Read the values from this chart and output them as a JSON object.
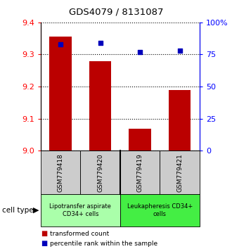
{
  "title": "GDS4079 / 8131087",
  "samples": [
    "GSM779418",
    "GSM779420",
    "GSM779419",
    "GSM779421"
  ],
  "red_values": [
    9.355,
    9.28,
    9.068,
    9.19
  ],
  "blue_values": [
    83,
    84,
    77,
    78
  ],
  "ylim_left": [
    9.0,
    9.4
  ],
  "ylim_right": [
    0,
    100
  ],
  "yticks_left": [
    9.0,
    9.1,
    9.2,
    9.3,
    9.4
  ],
  "yticks_right": [
    0,
    25,
    50,
    75,
    100
  ],
  "ytick_labels_right": [
    "0",
    "25",
    "50",
    "75",
    "100%"
  ],
  "bar_color": "#bb0000",
  "dot_color": "#0000bb",
  "group1_color": "#aaffaa",
  "group2_color": "#44ee44",
  "sample_box_color": "#cccccc",
  "cell_type_label": "cell type",
  "legend_label_red": "transformed count",
  "legend_label_blue": "percentile rank within the sample",
  "bar_width": 0.55
}
